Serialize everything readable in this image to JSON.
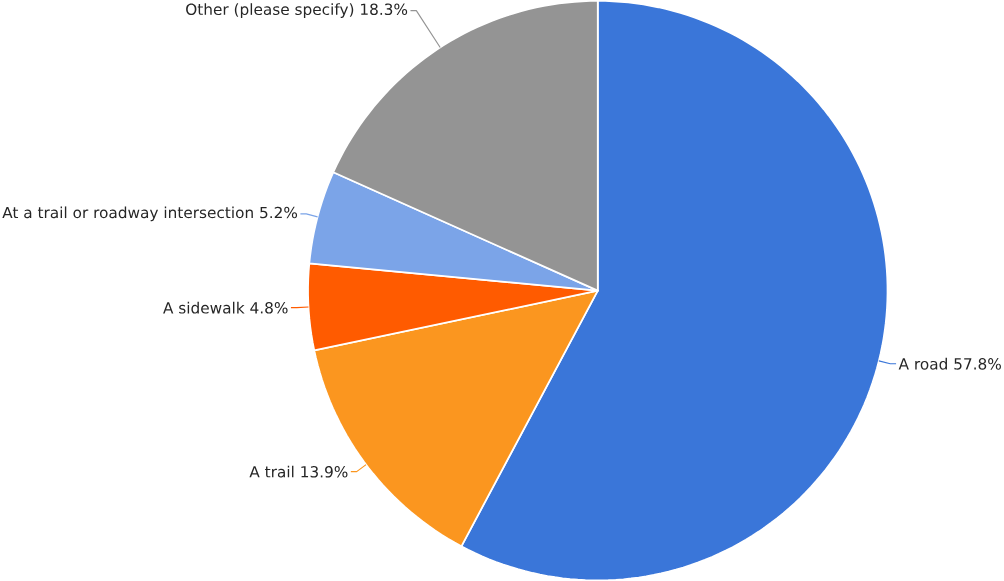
{
  "chart_data": {
    "type": "pie",
    "categories": [
      "A road",
      "A trail",
      "A sidewalk",
      "At a trail or roadway intersection",
      "Other (please specify)"
    ],
    "values": [
      57.8,
      13.9,
      4.8,
      5.2,
      18.3
    ],
    "colors": [
      "#3a76d9",
      "#fb961f",
      "#ff5b00",
      "#7ba4e8",
      "#949494"
    ],
    "value_labels": [
      "57.8%",
      "13.9%",
      "4.8%",
      "5.2%",
      "18.3%"
    ]
  }
}
